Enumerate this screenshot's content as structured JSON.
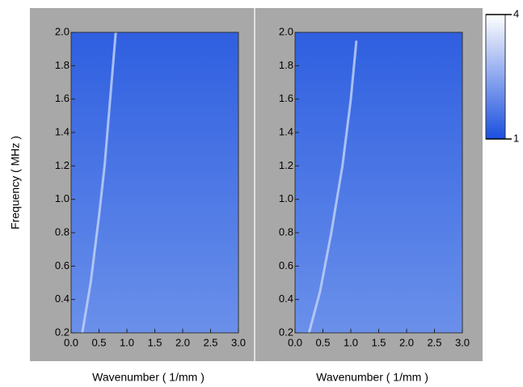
{
  "chart_data": [
    {
      "type": "line",
      "x_label": "Wavenumber ( 1/mm )",
      "y_label": "Frequency ( MHz )",
      "heatmap_colors": [
        "#2f5fe0",
        "#6a90ea"
      ],
      "xlim": [
        0,
        3
      ],
      "ylim": [
        0.2,
        2.0
      ],
      "xticks": [
        {
          "value": 0,
          "label": "0.0"
        },
        0.5,
        {
          "value": 1,
          "label": "1.0"
        },
        1.5,
        {
          "value": 2,
          "label": "2.0"
        },
        2.5,
        {
          "value": 3,
          "label": "3.0"
        }
      ],
      "yticks": [
        0.2,
        0.4,
        0.6,
        0.8,
        {
          "value": 1,
          "label": "1.0"
        },
        1.2,
        1.4,
        1.6,
        1.8,
        {
          "value": 2,
          "label": "2.0"
        }
      ],
      "series": [
        {
          "color": "#c4d4f6",
          "x": [
            0.2,
            0.35,
            0.5,
            0.6,
            0.7,
            0.8
          ],
          "values": [
            0.2,
            0.5,
            0.9,
            1.2,
            1.6,
            2.0
          ]
        }
      ]
    },
    {
      "type": "line",
      "x_label": "Wavenumber ( 1/mm )",
      "heatmap_colors": [
        "#2f5fe0",
        "#6a90ea"
      ],
      "xlim": [
        0,
        3
      ],
      "ylim": [
        0.2,
        2.0
      ],
      "xticks": [
        {
          "value": 0,
          "label": "0.0"
        },
        0.5,
        {
          "value": 1,
          "label": "1.0"
        },
        1.5,
        {
          "value": 2,
          "label": "2.0"
        },
        2.5,
        {
          "value": 3,
          "label": "3.0"
        }
      ],
      "yticks": [
        0.2,
        0.4,
        0.6,
        0.8,
        {
          "value": 1,
          "label": "1.0"
        },
        1.2,
        1.4,
        1.6,
        1.8,
        {
          "value": 2,
          "label": "2.0"
        }
      ],
      "series": [
        {
          "color": "#c4d4f6",
          "x": [
            0.25,
            0.45,
            0.65,
            0.85,
            1.0,
            1.1
          ],
          "values": [
            0.2,
            0.45,
            0.8,
            1.2,
            1.6,
            1.95
          ]
        }
      ]
    }
  ],
  "colorbar": {
    "lim": [
      1,
      4
    ],
    "ticks": [
      4,
      1
    ],
    "colors": [
      "#ffffff",
      "#1a4fe0"
    ]
  }
}
